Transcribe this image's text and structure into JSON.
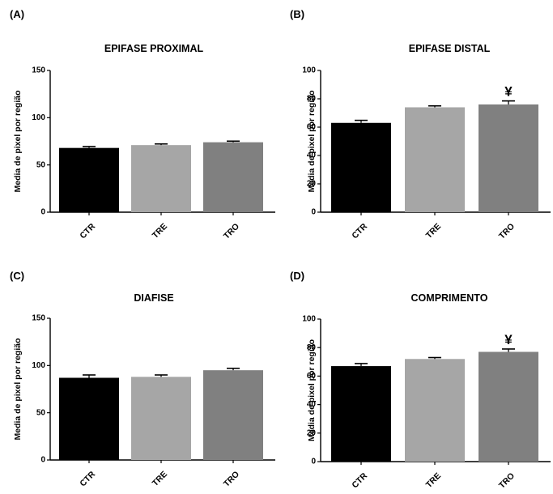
{
  "chart_data": [
    {
      "type": "bar",
      "panel": "(A)",
      "title": "EPIFASE PROXIMAL",
      "ylabel": "Media de pixel por região",
      "xlabel": "",
      "categories": [
        "CTR",
        "TRE",
        "TRO"
      ],
      "values": [
        68,
        71,
        74
      ],
      "errors": [
        1.5,
        1.2,
        1.2
      ],
      "bar_colors": [
        "#000000",
        "#a6a6a6",
        "#808080"
      ],
      "ylim": [
        0,
        150
      ],
      "yticks": [
        "0",
        "50",
        "100",
        "150"
      ],
      "annotations": []
    },
    {
      "type": "bar",
      "panel": "(B)",
      "title": "EPIFASE DISTAL",
      "ylabel": "Media de pixel por região",
      "xlabel": "",
      "categories": [
        "CTR",
        "TRE",
        "TRO"
      ],
      "values": [
        63,
        74,
        76
      ],
      "errors": [
        1.8,
        1.0,
        2.5
      ],
      "bar_colors": [
        "#000000",
        "#a6a6a6",
        "#808080"
      ],
      "ylim": [
        0,
        100
      ],
      "yticks": [
        "0",
        "20",
        "40",
        "60",
        "80",
        "100"
      ],
      "annotations": [
        {
          "category": "TRO",
          "text": "¥"
        }
      ]
    },
    {
      "type": "bar",
      "panel": "(C)",
      "title": "DIAFISE",
      "ylabel": "Media de pixel por região",
      "xlabel": "",
      "categories": [
        "CTR",
        "TRE",
        "TRO"
      ],
      "values": [
        87,
        88,
        95
      ],
      "errors": [
        3.0,
        2.0,
        2.0
      ],
      "bar_colors": [
        "#000000",
        "#a6a6a6",
        "#808080"
      ],
      "ylim": [
        0,
        150
      ],
      "yticks": [
        "0",
        "50",
        "100",
        "150"
      ],
      "annotations": []
    },
    {
      "type": "bar",
      "panel": "(D)",
      "title": "COMPRIMENTO",
      "ylabel": "Media de pixel por região",
      "xlabel": "",
      "categories": [
        "CTR",
        "TRE",
        "TRO"
      ],
      "values": [
        67,
        72,
        77
      ],
      "errors": [
        1.8,
        1.0,
        2.0
      ],
      "bar_colors": [
        "#000000",
        "#a6a6a6",
        "#808080"
      ],
      "ylim": [
        0,
        100
      ],
      "yticks": [
        "0",
        "20",
        "40",
        "60",
        "80",
        "100"
      ],
      "annotations": [
        {
          "category": "TRO",
          "text": "¥"
        }
      ]
    }
  ]
}
